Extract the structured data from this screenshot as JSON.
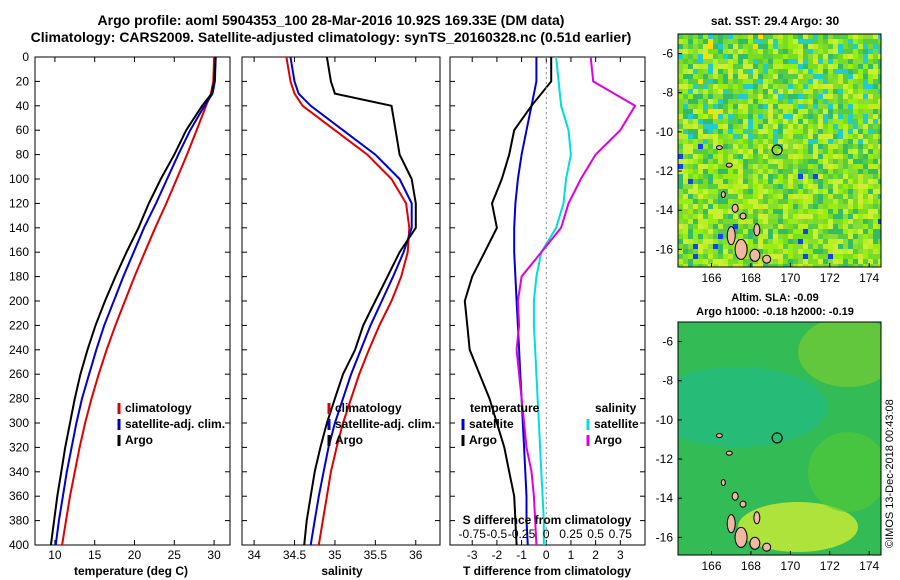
{
  "header": {
    "title_line1": "Argo profile: aoml 5904353_100 28-Mar-2016 10.92S 169.33E (DM data)",
    "title_line2": "Climatology: CARS2009. Satellite-adjusted climatology: synTS_20160328.nc (0.51d earlier)"
  },
  "watermark": "©IMOS 13-Dec-2018 00:43:08",
  "colors": {
    "clim": "#dd0000",
    "sat": "#0000cc",
    "argo": "#000000",
    "sal_sat": "#00dddd",
    "sal_argo": "#dd00dd"
  },
  "chart_data": [
    {
      "id": "temperature",
      "type": "line",
      "xlabel": "temperature (deg C)",
      "xlim": [
        7.5,
        32
      ],
      "ylim": [
        0,
        400
      ],
      "xticks": [
        10,
        15,
        20,
        25,
        30
      ],
      "legend": [
        "climatology",
        "satellite-adj. clim.",
        "Argo"
      ],
      "series": [
        {
          "name": "climatology",
          "depth": [
            0,
            20,
            30,
            40,
            60,
            80,
            100,
            120,
            140,
            160,
            180,
            200,
            220,
            240,
            260,
            280,
            300,
            320,
            340,
            360,
            380,
            400
          ],
          "values": [
            30.0,
            29.9,
            29.6,
            29.0,
            27.8,
            26.6,
            25.3,
            24.0,
            22.6,
            21.3,
            20.0,
            18.8,
            17.6,
            16.5,
            15.5,
            14.6,
            13.8,
            13.1,
            12.5,
            11.9,
            11.4,
            10.9
          ]
        },
        {
          "name": "satellite-adj. clim.",
          "depth": [
            0,
            20,
            30,
            40,
            60,
            80,
            100,
            120,
            140,
            160,
            180,
            200,
            220,
            240,
            260,
            280,
            300,
            320,
            340,
            360,
            380,
            400
          ],
          "values": [
            30.2,
            30.1,
            29.8,
            28.8,
            27.0,
            25.5,
            24.1,
            22.7,
            21.2,
            19.9,
            18.6,
            17.4,
            16.2,
            15.2,
            14.3,
            13.4,
            12.7,
            12.1,
            11.5,
            11.0,
            10.5,
            10.1
          ]
        },
        {
          "name": "Argo",
          "depth": [
            0,
            20,
            30,
            40,
            60,
            80,
            100,
            120,
            140,
            160,
            180,
            200,
            220,
            240,
            260,
            280,
            300,
            320,
            340,
            360,
            380,
            400
          ],
          "values": [
            30.2,
            30.0,
            29.7,
            28.5,
            26.5,
            25.0,
            23.3,
            21.8,
            20.5,
            19.0,
            17.6,
            16.3,
            15.1,
            14.1,
            13.2,
            12.5,
            11.9,
            11.3,
            10.8,
            10.3,
            9.9,
            9.5
          ]
        }
      ]
    },
    {
      "id": "salinity",
      "type": "line",
      "xlabel": "salinity",
      "xlim": [
        33.85,
        36.3
      ],
      "ylim": [
        0,
        400
      ],
      "xticks": [
        34,
        34.5,
        35,
        35.5,
        36
      ],
      "legend": [
        "climatology",
        "satellite-adj. clim.",
        "Argo"
      ],
      "series": [
        {
          "name": "climatology",
          "depth": [
            0,
            20,
            30,
            40,
            60,
            80,
            100,
            120,
            140,
            160,
            180,
            200,
            220,
            240,
            260,
            280,
            300,
            320,
            340,
            360,
            380,
            400
          ],
          "values": [
            34.4,
            34.45,
            34.5,
            34.6,
            35.0,
            35.4,
            35.7,
            35.88,
            35.92,
            35.9,
            35.82,
            35.7,
            35.55,
            35.42,
            35.3,
            35.2,
            35.1,
            35.02,
            34.95,
            34.9,
            34.85,
            34.8
          ]
        },
        {
          "name": "satellite-adj. clim.",
          "depth": [
            0,
            20,
            30,
            40,
            60,
            80,
            100,
            120,
            140,
            160,
            180,
            200,
            220,
            240,
            260,
            280,
            300,
            320,
            340,
            360,
            380,
            400
          ],
          "values": [
            34.45,
            34.5,
            34.55,
            34.7,
            35.1,
            35.5,
            35.8,
            35.95,
            35.95,
            35.85,
            35.72,
            35.58,
            35.44,
            35.32,
            35.2,
            35.1,
            35.0,
            34.92,
            34.86,
            34.8,
            34.75,
            34.7
          ]
        },
        {
          "name": "Argo",
          "depth": [
            0,
            20,
            30,
            40,
            60,
            80,
            100,
            120,
            140,
            160,
            180,
            200,
            220,
            240,
            260,
            280,
            300,
            320,
            340,
            360,
            380,
            400
          ],
          "values": [
            34.9,
            34.95,
            35.0,
            35.7,
            35.75,
            35.8,
            35.95,
            36.0,
            36.0,
            35.8,
            35.65,
            35.5,
            35.35,
            35.25,
            35.1,
            35.0,
            34.9,
            34.82,
            34.75,
            34.7,
            34.65,
            34.62
          ]
        }
      ]
    },
    {
      "id": "difference",
      "type": "line",
      "xlabel": "T difference from climatology",
      "top_axis_label": "S difference from climatology",
      "xlim": [
        -3.9,
        4.0
      ],
      "ylim": [
        0,
        400
      ],
      "xticks": [
        -3,
        -2,
        -1,
        0,
        1,
        2,
        3
      ],
      "top_ticks": [
        -0.75,
        -0.5,
        -0.25,
        0,
        0.25,
        0.5,
        0.75
      ],
      "top_tick_labels": [
        "-0.75",
        "-0.5",
        "-0.25",
        "0",
        "0.25",
        "0.5",
        "0.75"
      ],
      "legend_temperature": {
        "title": "temperature",
        "items": [
          "satellite",
          "Argo"
        ]
      },
      "legend_salinity": {
        "title": "salinity",
        "items": [
          "satellite",
          "Argo"
        ]
      },
      "series": [
        {
          "name": "temperature satellite",
          "depth": [
            0,
            20,
            40,
            60,
            80,
            100,
            120,
            140,
            160,
            180,
            200,
            220,
            240,
            260,
            280,
            300,
            320,
            340,
            360,
            380,
            400
          ],
          "values": [
            -0.4,
            -0.4,
            -0.6,
            -0.8,
            -1.0,
            -1.15,
            -1.25,
            -1.3,
            -1.3,
            -1.25,
            -1.2,
            -1.15,
            -1.1,
            -1.05,
            -1.0,
            -0.95,
            -0.9,
            -0.85,
            -0.8,
            -0.8,
            -0.75
          ]
        },
        {
          "name": "temperature Argo",
          "depth": [
            0,
            20,
            40,
            60,
            80,
            100,
            120,
            140,
            160,
            180,
            200,
            220,
            240,
            260,
            280,
            300,
            320,
            340,
            360,
            380,
            400
          ],
          "values": [
            0.2,
            0.2,
            -0.6,
            -1.3,
            -1.5,
            -1.8,
            -2.2,
            -2.0,
            -2.5,
            -3.0,
            -3.3,
            -3.2,
            -3.1,
            -2.7,
            -2.3,
            -2.0,
            -1.7,
            -1.5,
            -1.3,
            -1.25,
            -1.2
          ]
        },
        {
          "name": "salinity satellite",
          "depth": [
            0,
            20,
            40,
            60,
            80,
            100,
            120,
            140,
            160,
            180,
            200,
            220,
            240,
            260,
            280,
            300,
            320,
            340,
            360,
            380,
            400
          ],
          "values": [
            0.4,
            0.5,
            0.6,
            0.9,
            1.0,
            0.8,
            0.7,
            0.4,
            -0.2,
            -0.4,
            -0.5,
            -0.5,
            -0.45,
            -0.4,
            -0.35,
            -0.3,
            -0.25,
            -0.2,
            -0.15,
            -0.1,
            -0.1
          ]
        },
        {
          "name": "salinity Argo",
          "depth": [
            0,
            20,
            40,
            60,
            80,
            100,
            120,
            140,
            160,
            180,
            200,
            220,
            240,
            260,
            280,
            300,
            320,
            340,
            360,
            380,
            400
          ],
          "values": [
            1.8,
            1.9,
            3.6,
            3.0,
            2.0,
            1.4,
            0.9,
            0.6,
            -0.2,
            -1.0,
            -1.15,
            -1.1,
            -1.2,
            -1.1,
            -1.0,
            -0.9,
            -0.8,
            -0.6,
            -0.5,
            -0.45,
            -0.4
          ]
        }
      ]
    }
  ],
  "depth_axis": {
    "ticks": [
      0,
      20,
      40,
      60,
      80,
      100,
      120,
      140,
      160,
      180,
      200,
      220,
      240,
      260,
      280,
      300,
      320,
      340,
      360,
      380,
      400
    ]
  },
  "maps": [
    {
      "id": "sst",
      "title_line1": "sat. SST: 29.4 Argo: 30",
      "title_line2": "",
      "lon_ticks": [
        166,
        168,
        170,
        172,
        174
      ],
      "lat_ticks": [
        -6,
        -8,
        -10,
        -12,
        -14,
        -16
      ],
      "marker": {
        "lon": 169.33,
        "lat": -10.92
      }
    },
    {
      "id": "sla",
      "title_line1": "Altim. SLA: -0.09",
      "title_line2": "Argo h1000: -0.18 h2000: -0.19",
      "lon_ticks": [
        166,
        168,
        170,
        172,
        174
      ],
      "lat_ticks": [
        -6,
        -8,
        -10,
        -12,
        -14,
        -16
      ],
      "marker": {
        "lon": 169.33,
        "lat": -10.92
      }
    }
  ]
}
